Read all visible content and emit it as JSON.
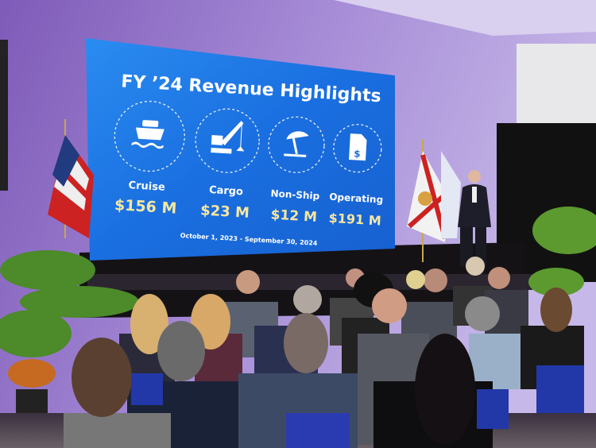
{
  "slide": {
    "title": "FY ’24 Revenue Highlights",
    "categories": [
      {
        "label": "Cruise",
        "value": "$156 M",
        "icon": "cruise-ship-icon"
      },
      {
        "label": "Cargo",
        "value": "$23 M",
        "icon": "crane-icon"
      },
      {
        "label": "Non-Ship",
        "value": "$12 M",
        "icon": "beach-umbrella-icon"
      },
      {
        "label": "Operating",
        "value": "$191 M",
        "icon": "dollar-document-icon"
      }
    ],
    "date_range": "October 1, 2023 - September 30, 2024"
  },
  "colors": {
    "screen_blue": "#1a6fe0",
    "value_gold": "#f6e7a0",
    "wall_purple": "#8a63c4"
  }
}
